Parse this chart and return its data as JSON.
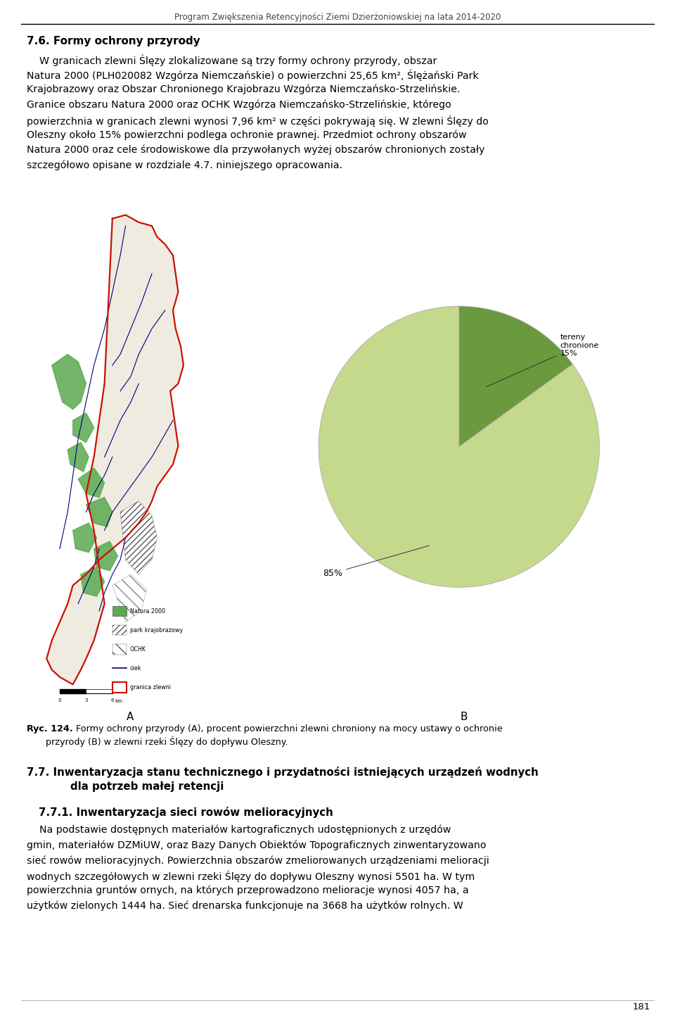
{
  "page_title": "Program Zwiększenia Retencyjności Ziemi Dzierżoniowskiej na lata 2014-2020",
  "page_number": "181",
  "bg_color": "#ffffff",
  "section_heading": "7.6. Formy ochrony przyrody",
  "para1_lines": [
    "    W granicach zlewni Ślęzy zlokalizowane są trzy formy ochrony przyrody, obszar",
    "Natura 2000 (PLH020082 Wzgórza Niemczańskie) o powierzchni 25,65 km², Ślężański Park",
    "Krajobrazowy oraz Obszar Chronionego Krajobrazu Wzgórza Niemczańsko-Strzelińskie.",
    "Granice obszaru Natura 2000 oraz OCHK Wzgórza Niemczańsko-Strzelińskie, którego",
    "powierzchnia w granicach zlewni wynosi 7,96 km² w części pokrywają się. W zlewni Ślęzy do",
    "Oleszny około 15% powierzchni podlega ochronie prawnej. Przedmiot ochrony obszarów",
    "Natura 2000 oraz cele środowiskowe dla przywołanych wyżej obszarów chronionych zostały",
    "szczegółowo opisane w rozdziale 4.7. niniejszego opracowania."
  ],
  "label_A": "A",
  "label_B": "B",
  "fig_caption_bold": "Ryc. 124.",
  "fig_caption_rest": " Formy ochrony przyrody (A), procent powierzchni zlewni chroniony na mocy ustawy o ochronie",
  "fig_caption_line2": "przyrody (B) w zlewni rzeki Ślęzy do dopływu Oleszny.",
  "pie_values": [
    15,
    85
  ],
  "pie_colors": [
    "#6b9a3e",
    "#c5d98d"
  ],
  "pie_label_15": "tereny\nchronione\n15%",
  "pie_label_85": "85%",
  "section2_line1": "7.7. Inwentaryzacja stanu technicznego i przydatności istniejących urządzeń wodnych",
  "section2_line2": "dla potrzeb małej retencji",
  "section3": "7.7.1. Inwentaryzacja sieci rowów melioracyjnych",
  "para2_lines": [
    "    Na podstawie dostępnych materiałów kartograficznych udostępnionych z urzędów",
    "gmin, materiałów DZMiUW, oraz Bazy Danych Obiektów Topograficznych zinwentaryzowano",
    "sieć rowów melioracyjnych. Powierzchnia obszarów zmeliorowanych urządzeniami melioracji",
    "wodnych szczegółowych w zlewni rzeki Ślęzy do dopływu Oleszny wynosi 5501 ha. W tym",
    "powierzchnia gruntów ornych, na których przeprowadzono melioracje wynosi 4057 ha, a",
    "użytków zielonych 1444 ha. Sieć drenarska funkcjonuje na 3668 ha użytków rolnych. W"
  ]
}
